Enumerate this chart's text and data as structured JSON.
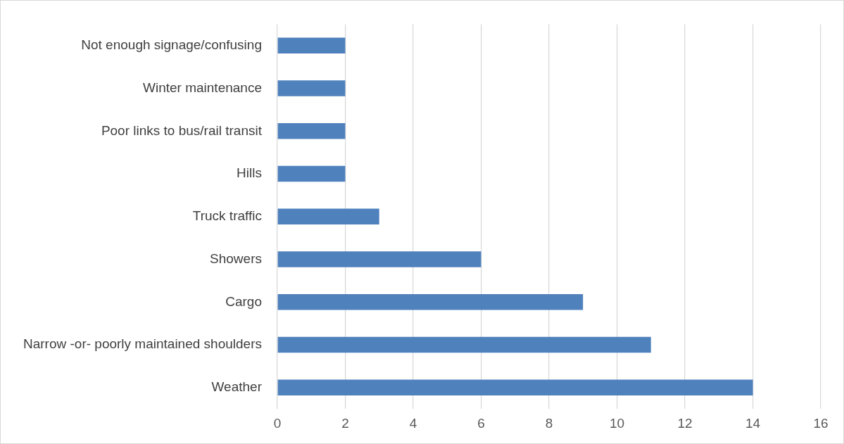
{
  "chart_data": {
    "type": "bar",
    "orientation": "horizontal",
    "categories": [
      "Not enough signage/confusing",
      "Winter maintenance",
      "Poor links to bus/rail transit",
      "Hills",
      "Truck traffic",
      "Showers",
      "Cargo",
      "Narrow -or- poorly maintained shoulders",
      "Weather"
    ],
    "values": [
      2,
      2,
      2,
      2,
      3,
      6,
      9,
      11,
      14
    ],
    "color": "#4f81bd",
    "xlim": [
      0,
      16
    ],
    "xticks": [
      0,
      2,
      4,
      6,
      8,
      10,
      12,
      14,
      16
    ],
    "grid": "x",
    "legend": false
  }
}
